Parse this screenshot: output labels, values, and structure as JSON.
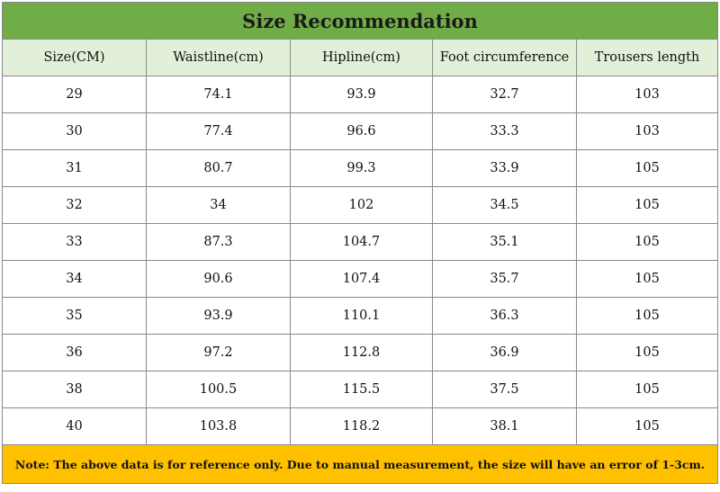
{
  "table": {
    "title": "Size Recommendation",
    "headers": [
      "Size(CM)",
      "Waistline(cm)",
      "Hipline(cm)",
      "Foot circumference",
      "Trousers length"
    ],
    "rows": [
      [
        "29",
        "74.1",
        "93.9",
        "32.7",
        "103"
      ],
      [
        "30",
        "77.4",
        "96.6",
        "33.3",
        "103"
      ],
      [
        "31",
        "80.7",
        "99.3",
        "33.9",
        "105"
      ],
      [
        "32",
        "34",
        "102",
        "34.5",
        "105"
      ],
      [
        "33",
        "87.3",
        "104.7",
        "35.1",
        "105"
      ],
      [
        "34",
        "90.6",
        "107.4",
        "35.7",
        "105"
      ],
      [
        "35",
        "93.9",
        "110.1",
        "36.3",
        "105"
      ],
      [
        "36",
        "97.2",
        "112.8",
        "36.9",
        "105"
      ],
      [
        "38",
        "100.5",
        "115.5",
        "37.5",
        "105"
      ],
      [
        "40",
        "103.8",
        "118.2",
        "38.1",
        "105"
      ]
    ],
    "note": "Note: The above data is for reference only. Due to manual measurement, the size will have an error of 1-3cm."
  },
  "colors": {
    "title_background": "#70ad47",
    "header_background": "#e2efd9",
    "note_background": "#ffc000",
    "grid": "#8a8a8a"
  }
}
